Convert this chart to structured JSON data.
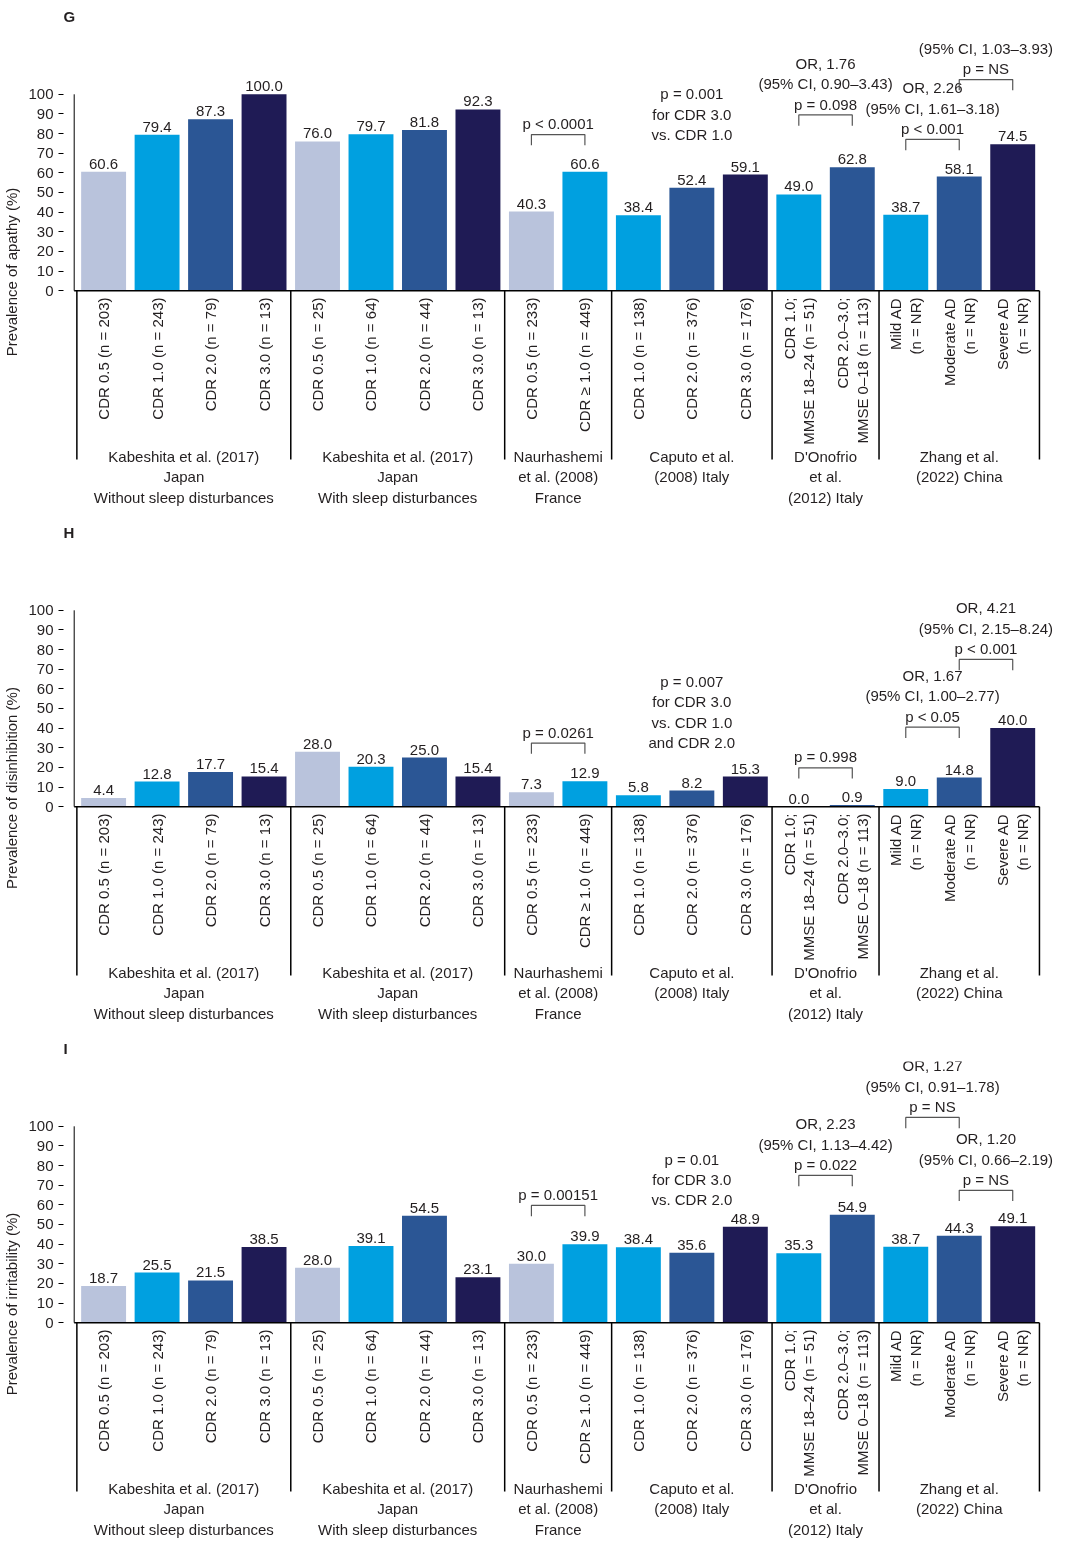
{
  "chart_data": [
    {
      "type": "bar",
      "title": "G",
      "ylabel": "Prevalence of apathy (%)",
      "categories": [
        "CDR 0.5 (n = 203)",
        "CDR 1.0 (n = 243)",
        "CDR 2.0 (n = 79)",
        "CDR 3.0 (n = 13)",
        "CDR 0.5 (n = 25)",
        "CDR 1.0 (n = 64)",
        "CDR 2.0 (n = 44)",
        "CDR 3.0 (n = 13)",
        "CDR 0.5 (n = 233)",
        "CDR ≥ 1.0 (n = 449)",
        "CDR 1.0 (n = 138)",
        "CDR 2.0 (n = 376)",
        "CDR 3.0 (n = 176)",
        "CDR 1.0;\nMMSE 18–24 (n = 51)",
        "CDR 2.0–3.0;\nMMSE 0–18 (n = 113)",
        "Mild AD\n(n = NR)",
        "Moderate AD\n(n = NR)",
        "Severe AD\n(n = NR)"
      ],
      "values": [
        60.6,
        79.4,
        87.3,
        100.0,
        76.0,
        79.7,
        81.8,
        92.3,
        40.3,
        60.6,
        38.4,
        52.4,
        59.1,
        49.0,
        62.8,
        38.7,
        58.1,
        74.5
      ],
      "value_labels": [
        "60.6",
        "79.4",
        "87.3",
        "100.0",
        "76.0",
        "79.7",
        "81.8",
        "92.3",
        "40.3",
        "60.6",
        "38.4",
        "52.4",
        "59.1",
        "49.0",
        "62.8",
        "38.7",
        "58.1",
        "74.5"
      ],
      "colors": [
        "#b9c3dc",
        "#00a0e0",
        "#2b5695",
        "#1f1b55",
        "#b9c3dc",
        "#00a0e0",
        "#2b5695",
        "#1f1b55",
        "#b9c3dc",
        "#00a0e0",
        "#00a0e0",
        "#2b5695",
        "#1f1b55",
        "#00a0e0",
        "#2b5695",
        "#00a0e0",
        "#2b5695",
        "#1f1b55"
      ],
      "ylim": [
        0,
        100
      ],
      "yticks": [
        0,
        10,
        20,
        30,
        40,
        50,
        60,
        70,
        80,
        90,
        100
      ],
      "annotations": [
        "p < 0.0001",
        "p = 0.001\nfor CDR 3.0\nvs. CDR 1.0",
        "OR, 1.76\n(95% CI, 0.90–3.43)\np = 0.098",
        "OR, 2.26\n(95% CI, 1.61–3.18)\np < 0.001",
        "(95% CI, 1.03–3.93)\np = NS",
        "Kabeshita et al. (2017)\nJapan\nWithout sleep disturbances",
        "Kabeshita et al. (2017)\nJapan\nWith sleep disturbances",
        "Naurhashemi\net al. (2008)\nFrance",
        "Caputo et al.\n(2008) Italy",
        "D'Onofrio\net al.\n(2012) Italy",
        "Zhang et al.\n(2022) China"
      ]
    },
    {
      "type": "bar",
      "title": "H",
      "ylabel": "Prevalence of disinhibition (%)",
      "categories": [
        "CDR 0.5 (n = 203)",
        "CDR 1.0 (n = 243)",
        "CDR 2.0 (n = 79)",
        "CDR 3.0 (n = 13)",
        "CDR 0.5 (n = 25)",
        "CDR 1.0 (n = 64)",
        "CDR 2.0 (n = 44)",
        "CDR 3.0 (n = 13)",
        "CDR 0.5 (n = 233)",
        "CDR ≥ 1.0 (n = 449)",
        "CDR 1.0 (n = 138)",
        "CDR 2.0 (n = 376)",
        "CDR 3.0 (n = 176)",
        "CDR 1.0;\nMMSE 18–24 (n = 51)",
        "CDR 2.0–3.0;\nMMSE 0–18 (n = 113)",
        "Mild AD\n(n = NR)",
        "Moderate AD\n(n = NR)",
        "Severe AD\n(n = NR)"
      ],
      "values": [
        4.4,
        12.8,
        17.7,
        15.4,
        28.0,
        20.3,
        25.0,
        15.4,
        7.3,
        12.9,
        5.8,
        8.2,
        15.3,
        0.0,
        0.9,
        9.0,
        14.8,
        40.0
      ],
      "value_labels": [
        "4.4",
        "12.8",
        "17.7",
        "15.4",
        "28.0",
        "20.3",
        "25.0",
        "15.4",
        "7.3",
        "12.9",
        "5.8",
        "8.2",
        "15.3",
        "0.0",
        "0.9",
        "9.0",
        "14.8",
        "40.0"
      ],
      "colors": [
        "#b9c3dc",
        "#00a0e0",
        "#2b5695",
        "#1f1b55",
        "#b9c3dc",
        "#00a0e0",
        "#2b5695",
        "#1f1b55",
        "#b9c3dc",
        "#00a0e0",
        "#00a0e0",
        "#2b5695",
        "#1f1b55",
        "#00a0e0",
        "#2b5695",
        "#00a0e0",
        "#2b5695",
        "#1f1b55"
      ],
      "ylim": [
        0,
        100
      ],
      "yticks": [
        0,
        10,
        20,
        30,
        40,
        50,
        60,
        70,
        80,
        90,
        100
      ],
      "annotations": [
        "p = 0.0261",
        "p = 0.007\nfor CDR 3.0\nvs. CDR 1.0\nand CDR 2.0",
        "p = 0.998",
        "OR, 1.67\n(95% CI, 1.00–2.77)\np < 0.05",
        "OR, 4.21\n(95% CI, 2.15–8.24)\np < 0.001",
        "Kabeshita et al. (2017)\nJapan\nWithout sleep disturbances",
        "Kabeshita et al. (2017)\nJapan\nWith sleep disturbances",
        "Naurhashemi\net al. (2008)\nFrance",
        "Caputo et al.\n(2008) Italy",
        "D'Onofrio\net al.\n(2012) Italy",
        "Zhang et al.\n(2022) China"
      ]
    },
    {
      "type": "bar",
      "title": "I",
      "ylabel": "Prevalence of irritability (%)",
      "categories": [
        "CDR 0.5 (n = 203)",
        "CDR 1.0 (n = 243)",
        "CDR 2.0 (n = 79)",
        "CDR 3.0 (n = 13)",
        "CDR 0.5 (n = 25)",
        "CDR 1.0 (n = 64)",
        "CDR 2.0 (n = 44)",
        "CDR 3.0 (n = 13)",
        "CDR 0.5 (n = 233)",
        "CDR ≥ 1.0 (n = 449)",
        "CDR 1.0 (n = 138)",
        "CDR 2.0 (n = 376)",
        "CDR 3.0 (n = 176)",
        "CDR 1.0;\nMMSE 18–24 (n = 51)",
        "CDR 2.0–3.0;\nMMSE 0–18 (n = 113)",
        "Mild AD\n(n = NR)",
        "Moderate AD\n(n = NR)",
        "Severe AD\n(n = NR)"
      ],
      "values": [
        18.7,
        25.5,
        21.5,
        38.5,
        28.0,
        39.1,
        54.5,
        23.1,
        30.0,
        39.9,
        38.4,
        35.6,
        48.9,
        35.3,
        54.9,
        38.7,
        44.3,
        49.1
      ],
      "value_labels": [
        "18.7",
        "25.5",
        "21.5",
        "38.5",
        "28.0",
        "39.1",
        "54.5",
        "23.1",
        "30.0",
        "39.9",
        "38.4",
        "35.6",
        "48.9",
        "35.3",
        "54.9",
        "38.7",
        "44.3",
        "49.1"
      ],
      "colors": [
        "#b9c3dc",
        "#00a0e0",
        "#2b5695",
        "#1f1b55",
        "#b9c3dc",
        "#00a0e0",
        "#2b5695",
        "#1f1b55",
        "#b9c3dc",
        "#00a0e0",
        "#00a0e0",
        "#2b5695",
        "#1f1b55",
        "#00a0e0",
        "#2b5695",
        "#00a0e0",
        "#2b5695",
        "#1f1b55"
      ],
      "ylim": [
        0,
        100
      ],
      "yticks": [
        0,
        10,
        20,
        30,
        40,
        50,
        60,
        70,
        80,
        90,
        100
      ],
      "annotations": [
        "p = 0.00151",
        "p = 0.01\nfor CDR 3.0\nvs. CDR 2.0",
        "OR, 2.23\n(95% CI, 1.13–4.42)\np = 0.022",
        "OR, 1.27\n(95% CI, 0.91–1.78)\np = NS",
        "OR, 1.20\n(95% CI, 0.66–2.19)\np = NS",
        "Kabeshita et al. (2017)\nJapan\nWithout sleep disturbances",
        "Kabeshita et al. (2017)\nJapan\nWith sleep disturbances",
        "Naurhashemi\net al. (2008)\nFrance",
        "Caputo et al.\n(2008) Italy",
        "D'Onofrio\net al.\n(2012) Italy",
        "Zhang et al.\n(2022) China"
      ]
    }
  ]
}
